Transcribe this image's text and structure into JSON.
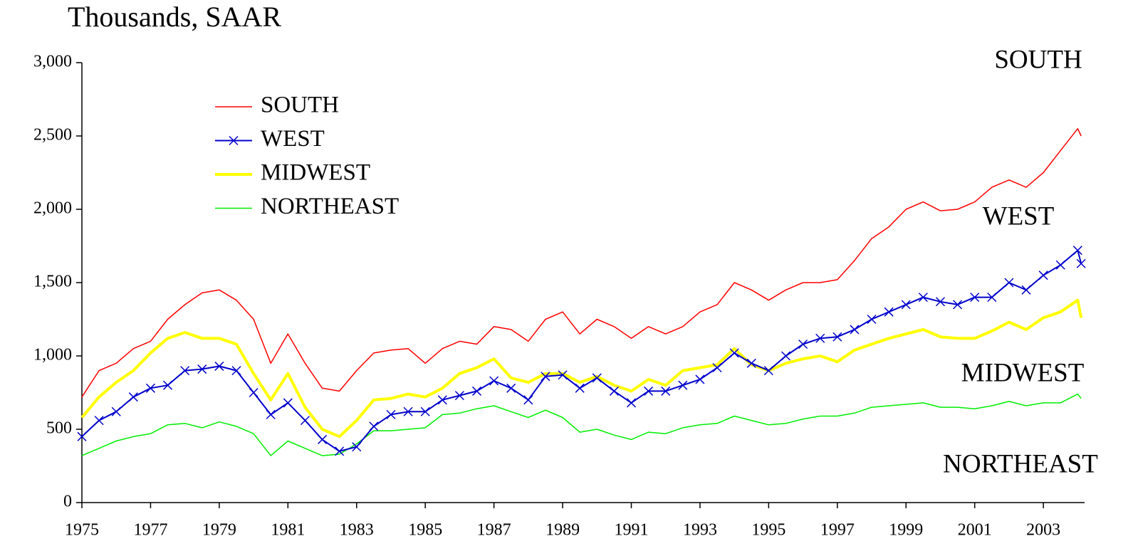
{
  "chart_data": {
    "type": "line",
    "title": "Thousands, SAAR",
    "x": [
      1975,
      1975.5,
      1976,
      1976.5,
      1977,
      1977.5,
      1978,
      1978.5,
      1979,
      1979.5,
      1980,
      1980.5,
      1981,
      1981.5,
      1982,
      1982.5,
      1983,
      1983.5,
      1984,
      1984.5,
      1985,
      1985.5,
      1986,
      1986.5,
      1987,
      1987.5,
      1988,
      1988.5,
      1989,
      1989.5,
      1990,
      1990.5,
      1991,
      1991.5,
      1992,
      1992.5,
      1993,
      1993.5,
      1994,
      1994.5,
      1995,
      1995.5,
      1996,
      1996.5,
      1997,
      1997.5,
      1998,
      1998.5,
      1999,
      1999.5,
      2000,
      2000.5,
      2001,
      2001.5,
      2002,
      2002.5,
      2003,
      2003.5,
      2004,
      2004.1
    ],
    "series": [
      {
        "name": "SOUTH",
        "color": "#ff0000",
        "values": [
          720,
          900,
          950,
          1050,
          1100,
          1250,
          1350,
          1430,
          1450,
          1380,
          1250,
          950,
          1150,
          950,
          780,
          760,
          900,
          1020,
          1040,
          1050,
          950,
          1050,
          1100,
          1080,
          1200,
          1180,
          1100,
          1250,
          1300,
          1150,
          1250,
          1200,
          1120,
          1200,
          1150,
          1200,
          1300,
          1350,
          1500,
          1450,
          1380,
          1450,
          1500,
          1500,
          1520,
          1650,
          1800,
          1880,
          2000,
          2050,
          1990,
          2000,
          2050,
          2150,
          2200,
          2150,
          2250,
          2400,
          2550,
          2500
        ]
      },
      {
        "name": "WEST",
        "color": "#0000cc",
        "values": [
          450,
          560,
          620,
          720,
          780,
          800,
          900,
          910,
          930,
          900,
          750,
          600,
          680,
          560,
          430,
          350,
          380,
          520,
          600,
          620,
          620,
          700,
          730,
          760,
          830,
          780,
          700,
          860,
          870,
          780,
          850,
          760,
          680,
          760,
          760,
          800,
          840,
          920,
          1020,
          950,
          900,
          1000,
          1080,
          1120,
          1130,
          1180,
          1250,
          1300,
          1350,
          1400,
          1370,
          1350,
          1400,
          1400,
          1500,
          1450,
          1550,
          1620,
          1720,
          1630
        ]
      },
      {
        "name": "MIDWEST",
        "color": "#ffff00",
        "values": [
          580,
          720,
          820,
          900,
          1020,
          1120,
          1160,
          1120,
          1120,
          1080,
          880,
          700,
          880,
          650,
          500,
          450,
          560,
          700,
          710,
          740,
          720,
          780,
          880,
          920,
          980,
          850,
          820,
          880,
          880,
          820,
          860,
          800,
          760,
          840,
          800,
          900,
          920,
          940,
          1050,
          940,
          900,
          950,
          980,
          1000,
          960,
          1040,
          1080,
          1120,
          1150,
          1180,
          1130,
          1120,
          1120,
          1170,
          1230,
          1180,
          1260,
          1300,
          1380,
          1260
        ]
      },
      {
        "name": "NORTHEAST",
        "color": "#00ee00",
        "values": [
          320,
          370,
          420,
          450,
          470,
          530,
          540,
          510,
          550,
          520,
          470,
          320,
          420,
          370,
          320,
          330,
          400,
          490,
          490,
          500,
          510,
          600,
          610,
          640,
          660,
          620,
          580,
          630,
          580,
          480,
          500,
          460,
          430,
          480,
          470,
          510,
          530,
          540,
          590,
          560,
          530,
          540,
          570,
          590,
          590,
          610,
          650,
          660,
          670,
          680,
          650,
          650,
          640,
          660,
          690,
          660,
          680,
          680,
          740,
          710
        ]
      }
    ],
    "xlim": [
      1975,
      2004.2
    ],
    "ylim": [
      0,
      3000
    ],
    "xticks": [
      1975,
      1977,
      1979,
      1981,
      1983,
      1985,
      1987,
      1989,
      1991,
      1993,
      1995,
      1997,
      1999,
      2001,
      2003
    ],
    "yticks": [
      0,
      500,
      {
        "value": 1000,
        "label": "1,000"
      },
      {
        "value": 1500,
        "label": "1,500"
      },
      {
        "value": 2000,
        "label": "2,000"
      },
      {
        "value": 2500,
        "label": "2,500"
      },
      {
        "value": 3000,
        "label": "3,000"
      }
    ],
    "annotations": [
      "SOUTH",
      "WEST",
      "MIDWEST",
      "NORTHEAST"
    ]
  }
}
